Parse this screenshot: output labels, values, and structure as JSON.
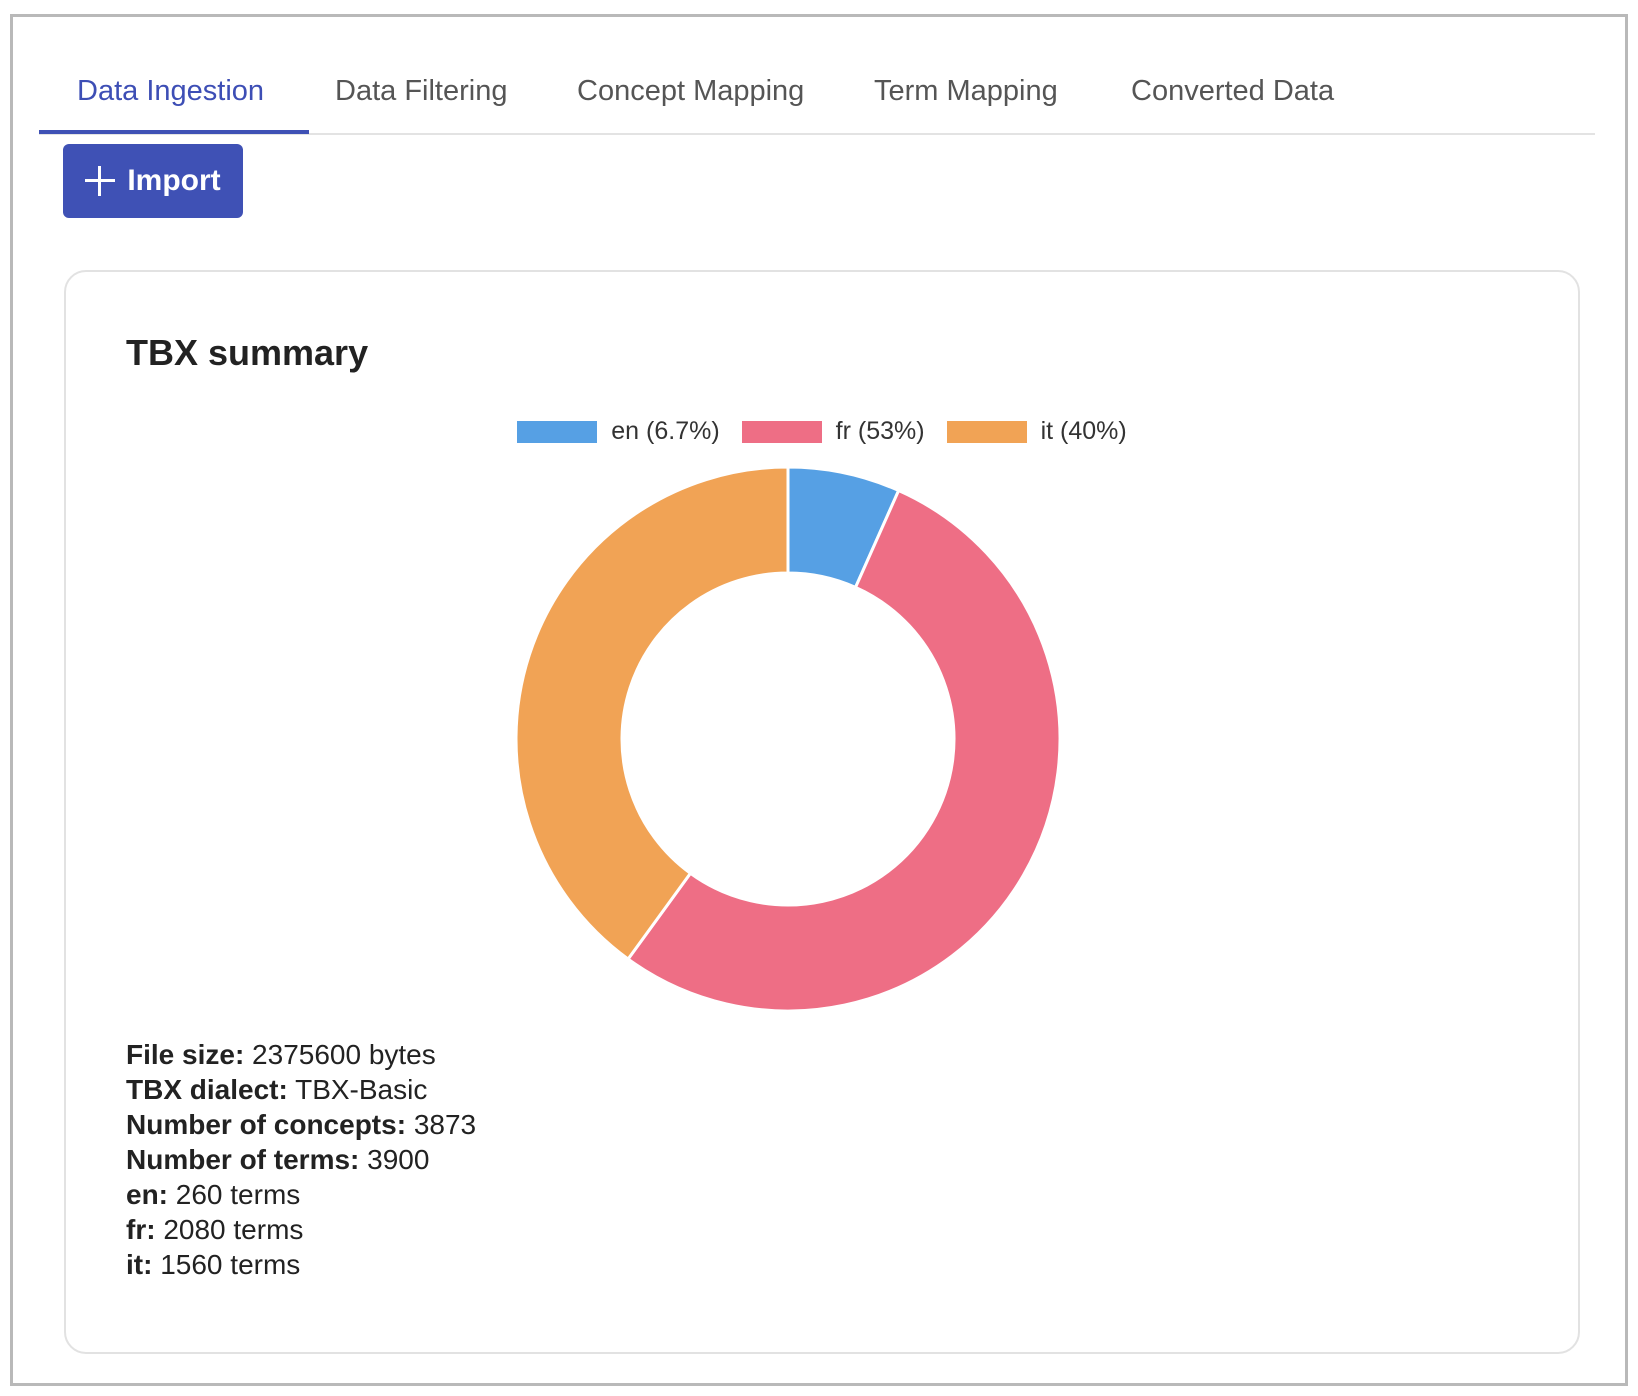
{
  "tabs": [
    {
      "label": "Data Ingestion",
      "active": true
    },
    {
      "label": "Data Filtering",
      "active": false
    },
    {
      "label": "Concept Mapping",
      "active": false
    },
    {
      "label": "Term Mapping",
      "active": false
    },
    {
      "label": "Converted Data",
      "active": false
    }
  ],
  "toolbar": {
    "import_label": "Import",
    "import_icon": "plus-icon"
  },
  "card": {
    "title": "TBX summary",
    "stats": [
      {
        "key": "File size:",
        "value": "2375600 bytes"
      },
      {
        "key": "TBX dialect:",
        "value": "TBX-Basic"
      },
      {
        "key": "Number of concepts:",
        "value": "3873"
      },
      {
        "key": "Number of terms:",
        "value": "3900"
      },
      {
        "key": "en:",
        "value": "260 terms"
      },
      {
        "key": "fr:",
        "value": "2080 terms"
      },
      {
        "key": "it:",
        "value": "1560 terms"
      }
    ]
  },
  "colors": {
    "accent": "#3f51b5",
    "en": "#56a0e4",
    "fr": "#ee6e85",
    "it": "#f1a355"
  },
  "chart_data": {
    "type": "pie",
    "donut": true,
    "legend_position": "top",
    "categories": [
      "en (6.7%)",
      "fr (53%)",
      "it (40%)"
    ],
    "values": [
      260,
      2080,
      1560
    ],
    "colors": [
      "#56a0e4",
      "#ee6e85",
      "#f1a355"
    ]
  }
}
